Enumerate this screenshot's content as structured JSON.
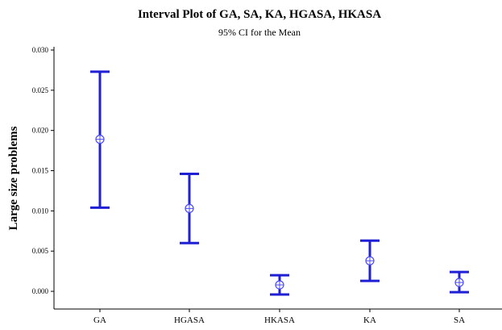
{
  "chart_data": {
    "type": "interval",
    "title": "Interval Plot of GA, SA, KA, HGASA, HKASA",
    "subtitle": "95% CI for the Mean",
    "xlabel": "",
    "ylabel": "Large size problems",
    "ylim": [
      -0.0022,
      0.0304
    ],
    "yticks": [
      "0.000",
      "0.005",
      "0.010",
      "0.015",
      "0.020",
      "0.025",
      "0.030"
    ],
    "ytick_values": [
      0.0,
      0.005,
      0.01,
      0.015,
      0.02,
      0.025,
      0.03
    ],
    "categories": [
      "GA",
      "HGASA",
      "HKASA",
      "KA",
      "SA"
    ],
    "mean": [
      0.0189,
      0.0103,
      0.0008,
      0.0038,
      0.0011
    ],
    "lower": [
      0.0104,
      0.006,
      -0.0004,
      0.0013,
      -0.0001
    ],
    "upper": [
      0.0273,
      0.0146,
      0.002,
      0.0063,
      0.0024
    ],
    "interval_color": "#1f1fd6",
    "marker_color": "#4a4aff"
  }
}
